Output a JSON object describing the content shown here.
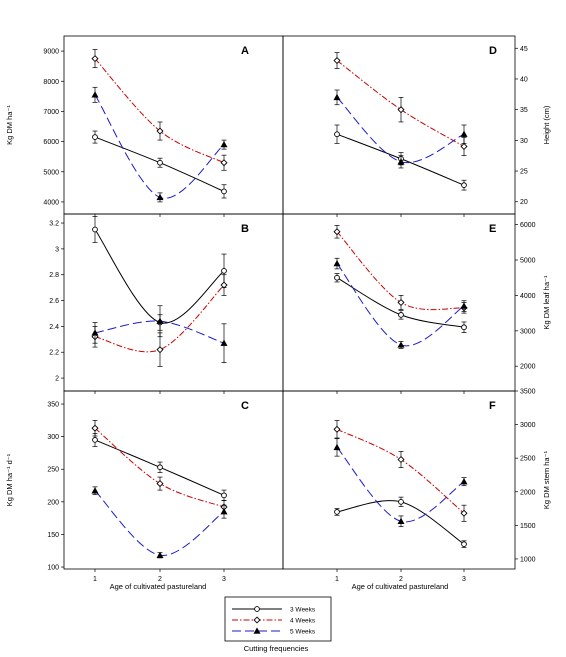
{
  "xlabel": "Age of cultivated pastureland",
  "legend_title": "Cutting frequencies",
  "legend": [
    "3 Weeks",
    "4 Weeks",
    "5 Weeks"
  ],
  "colors": {
    "3 Weeks": "#000000",
    "4 Weeks": "#cc0000",
    "5 Weeks": "#1a1acc"
  },
  "chart_data": [
    {
      "type": "line",
      "panel": "A",
      "ylabel": "Kg DM ha⁻¹",
      "y_axis_side": "left",
      "x": [
        1,
        2,
        3
      ],
      "ylim": [
        3600,
        9500
      ],
      "yticks": [
        4000,
        5000,
        6000,
        7000,
        8000,
        9000
      ],
      "show_xticks": false,
      "series": [
        {
          "name": "3 Weeks",
          "values": [
            6150,
            5300,
            4350
          ],
          "errors": [
            200,
            150,
            220
          ]
        },
        {
          "name": "4 Weeks",
          "values": [
            8750,
            6350,
            5300
          ],
          "errors": [
            300,
            300,
            250
          ]
        },
        {
          "name": "5 Weeks",
          "values": [
            7550,
            4150,
            5900
          ],
          "errors": [
            250,
            150,
            150
          ]
        }
      ]
    },
    {
      "type": "line",
      "panel": "D",
      "ylabel": "Height (cm)",
      "y_axis_side": "right",
      "x": [
        1,
        2,
        3
      ],
      "ylim": [
        18,
        47
      ],
      "yticks": [
        20,
        25,
        30,
        35,
        40,
        45
      ],
      "show_xticks": false,
      "series": [
        {
          "name": "3 Weeks",
          "values": [
            31,
            27,
            22.7
          ],
          "errors": [
            1.5,
            1,
            0.8
          ]
        },
        {
          "name": "4 Weeks",
          "values": [
            43,
            35,
            29
          ],
          "errors": [
            1.3,
            2,
            1.5
          ]
        },
        {
          "name": "5 Weeks",
          "values": [
            37,
            26.5,
            31
          ],
          "errors": [
            1.2,
            1,
            1.5
          ]
        }
      ]
    },
    {
      "type": "line",
      "panel": "B",
      "ylabel": "",
      "y_axis_side": "left",
      "x": [
        1,
        2,
        3
      ],
      "ylim": [
        1.9,
        3.27
      ],
      "yticks": [
        2.0,
        2.2,
        2.4,
        2.6,
        2.8,
        3.0,
        3.2
      ],
      "show_xticks": false,
      "series": [
        {
          "name": "3 Weeks",
          "values": [
            3.15,
            2.43,
            2.83
          ],
          "errors": [
            0.1,
            0.06,
            0.13
          ]
        },
        {
          "name": "4 Weeks",
          "values": [
            2.32,
            2.22,
            2.72
          ],
          "errors": [
            0.08,
            0.13,
            0.08
          ]
        },
        {
          "name": "5 Weeks",
          "values": [
            2.35,
            2.44,
            2.27
          ],
          "errors": [
            0.08,
            0.12,
            0.15
          ]
        }
      ]
    },
    {
      "type": "line",
      "panel": "E",
      "ylabel": "Kg DM leaf ha⁻¹",
      "y_axis_side": "right",
      "x": [
        1,
        2,
        3
      ],
      "ylim": [
        1300,
        6300
      ],
      "yticks": [
        2000,
        3000,
        4000,
        5000,
        6000
      ],
      "show_xticks": false,
      "series": [
        {
          "name": "3 Weeks",
          "values": [
            4500,
            3450,
            3100
          ],
          "errors": [
            120,
            120,
            150
          ]
        },
        {
          "name": "4 Weeks",
          "values": [
            5800,
            3800,
            3650
          ],
          "errors": [
            180,
            200,
            150
          ]
        },
        {
          "name": "5 Weeks",
          "values": [
            4900,
            2600,
            3700
          ],
          "errors": [
            150,
            100,
            150
          ]
        }
      ]
    },
    {
      "type": "line",
      "panel": "C",
      "ylabel": "Kg DM ha⁻¹ d⁻¹",
      "y_axis_side": "left",
      "x": [
        1,
        2,
        3
      ],
      "ylim": [
        97,
        370
      ],
      "yticks": [
        100,
        150,
        200,
        250,
        300,
        350
      ],
      "show_xticks": true,
      "series": [
        {
          "name": "3 Weeks",
          "values": [
            295,
            253,
            210
          ],
          "errors": [
            10,
            8,
            8
          ]
        },
        {
          "name": "4 Weeks",
          "values": [
            313,
            228,
            192
          ],
          "errors": [
            12,
            10,
            10
          ]
        },
        {
          "name": "5 Weeks",
          "values": [
            217,
            118,
            185
          ],
          "errors": [
            6,
            4,
            10
          ]
        }
      ]
    },
    {
      "type": "line",
      "panel": "F",
      "ylabel": "Kg DM stem ha⁻¹",
      "y_axis_side": "right",
      "x": [
        1,
        2,
        3
      ],
      "ylim": [
        850,
        3500
      ],
      "yticks": [
        1000,
        1500,
        2000,
        2500,
        3000,
        3500
      ],
      "show_xticks": true,
      "series": [
        {
          "name": "3 Weeks",
          "values": [
            1700,
            1850,
            1220
          ],
          "errors": [
            50,
            70,
            50
          ]
        },
        {
          "name": "4 Weeks",
          "values": [
            2930,
            2480,
            1680
          ],
          "errors": [
            130,
            120,
            120
          ]
        },
        {
          "name": "5 Weeks",
          "values": [
            2660,
            1560,
            2150
          ],
          "errors": [
            130,
            80,
            60
          ]
        }
      ]
    }
  ]
}
